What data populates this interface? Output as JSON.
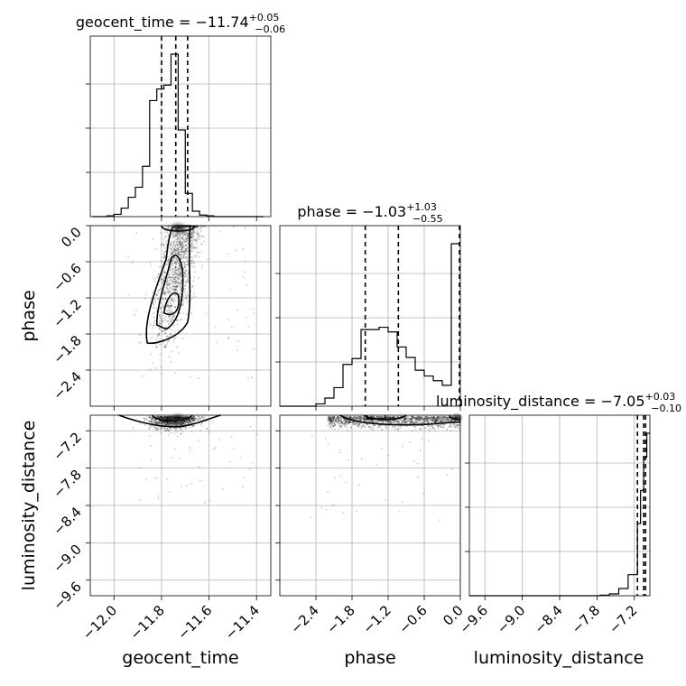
{
  "chart_data": {
    "type": "corner",
    "parameters": [
      "geocent_time",
      "phase",
      "luminosity_distance"
    ],
    "axis_labels": [
      "geocent_time",
      "phase",
      "luminosity_distance"
    ],
    "titles": [
      {
        "param": "geocent_time",
        "prefix": "geocent_time = ",
        "median": "−11.74",
        "plus": "+0.05",
        "minus": "−0.06"
      },
      {
        "param": "phase",
        "prefix": "phase = ",
        "median": "−1.03",
        "plus": "+1.03",
        "minus": "−0.55"
      },
      {
        "param": "luminosity_distance",
        "prefix": "luminosity_distance = ",
        "median": "−7.05",
        "plus": "+0.03",
        "minus": "−0.10"
      }
    ],
    "ranges": {
      "geocent_time": [
        -12.1,
        -11.34
      ],
      "phase": [
        -3.0,
        0.0
      ],
      "luminosity_distance": [
        -9.85,
        -6.95
      ]
    },
    "ticks": {
      "geocent_time": {
        "values": [
          -12.0,
          -11.8,
          -11.6,
          -11.4
        ],
        "labels": [
          "−12.0",
          "−11.8",
          "−11.6",
          "−11.4"
        ]
      },
      "phase": {
        "values": [
          -2.4,
          -1.8,
          -1.2,
          -0.6,
          0.0
        ],
        "labels": [
          "−2.4",
          "−1.8",
          "−1.2",
          "−0.6",
          "0.0"
        ]
      },
      "luminosity_distance": {
        "values": [
          -9.6,
          -9.0,
          -8.4,
          -7.8,
          -7.2
        ],
        "labels": [
          "−9.6",
          "−9.0",
          "−8.4",
          "−7.8",
          "−7.2"
        ]
      }
    },
    "quantiles": {
      "geocent_time": [
        -11.8,
        -11.74,
        -11.69
      ],
      "phase": [
        -1.58,
        -1.03,
        0.0
      ],
      "luminosity_distance": [
        -7.15,
        -7.05,
        -7.02
      ]
    },
    "histograms": {
      "geocent_time": {
        "edges": [
          -12.09,
          -12.06,
          -12.03,
          -12.0,
          -11.97,
          -11.94,
          -11.91,
          -11.88,
          -11.85,
          -11.82,
          -11.79,
          -11.76,
          -11.73,
          -11.7,
          -11.67,
          -11.64,
          -11.61,
          -11.58,
          -11.55,
          -11.52,
          -11.49,
          -11.46,
          -11.43,
          -11.4,
          -11.37
        ],
        "counts": [
          0,
          0,
          1,
          3,
          11,
          25,
          38,
          65,
          150,
          165,
          170,
          210,
          112,
          30,
          7,
          2,
          1,
          0,
          0,
          0,
          0,
          0,
          0,
          0
        ]
      },
      "phase": {
        "edges": [
          -3.0,
          -2.85,
          -2.7,
          -2.55,
          -2.4,
          -2.25,
          -2.1,
          -1.95,
          -1.8,
          -1.65,
          -1.5,
          -1.35,
          -1.2,
          -1.05,
          -0.9,
          -0.75,
          -0.6,
          -0.45,
          -0.3,
          -0.15,
          0.0
        ],
        "counts": [
          0,
          0,
          0,
          0,
          2,
          7,
          16,
          36,
          41,
          66,
          66,
          68,
          64,
          51,
          42,
          31,
          26,
          22,
          18,
          140
        ]
      },
      "luminosity_distance": {
        "edges": [
          -9.85,
          -9.7,
          -9.55,
          -9.4,
          -9.25,
          -9.1,
          -8.95,
          -8.8,
          -8.65,
          -8.5,
          -8.35,
          -8.2,
          -8.05,
          -7.9,
          -7.75,
          -7.6,
          -7.45,
          -7.3,
          -7.15,
          -7.1,
          -7.05,
          -7.0,
          -6.95
        ],
        "counts": [
          0,
          0,
          0,
          0,
          0,
          0,
          0,
          0,
          0,
          0,
          0,
          0,
          0,
          0,
          1,
          3,
          12,
          35,
          120,
          175,
          230,
          270
        ]
      }
    },
    "grid": true
  }
}
